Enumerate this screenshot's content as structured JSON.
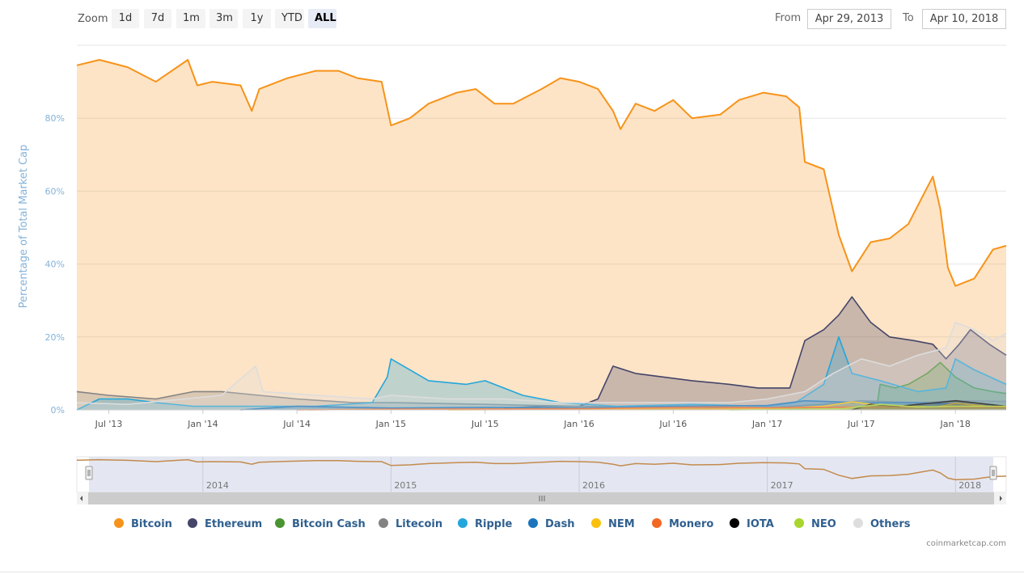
{
  "zoom": {
    "label": "Zoom",
    "buttons": [
      "1d",
      "7d",
      "1m",
      "3m",
      "1y",
      "YTD",
      "ALL"
    ],
    "active": "ALL"
  },
  "range": {
    "from_label": "From",
    "from_value": "Apr 29, 2013",
    "to_label": "To",
    "to_value": "Apr 10, 2018"
  },
  "credit": "coinmarketcap.com",
  "chart_data": {
    "type": "area",
    "title": "",
    "ylabel": "Percentage of Total Market Cap",
    "xlabel": "",
    "x_range": [
      2013.33,
      2018.27
    ],
    "ylim": [
      0,
      100
    ],
    "y_ticks": [
      0,
      20,
      40,
      60,
      80
    ],
    "y_tick_labels": [
      "0%",
      "20%",
      "40%",
      "60%",
      "80%"
    ],
    "x_ticks": [
      2013.5,
      2014.0,
      2014.5,
      2015.0,
      2015.5,
      2016.0,
      2016.5,
      2017.0,
      2017.5,
      2018.0
    ],
    "x_tick_labels": [
      "Jul '13",
      "Jan '14",
      "Jul '14",
      "Jan '15",
      "Jul '15",
      "Jan '16",
      "Jul '16",
      "Jan '17",
      "Jul '17",
      "Jan '18"
    ],
    "grid": true,
    "legend_position": "bottom",
    "navigator": {
      "x_ticks": [
        2014,
        2015,
        2016,
        2017,
        2018
      ],
      "x_tick_labels": [
        "2014",
        "2015",
        "2016",
        "2017",
        "2018"
      ]
    },
    "series": [
      {
        "name": "Bitcoin",
        "color": "#f7931a",
        "points": [
          [
            2013.33,
            94.5
          ],
          [
            2013.45,
            96
          ],
          [
            2013.6,
            94
          ],
          [
            2013.75,
            90
          ],
          [
            2013.92,
            96
          ],
          [
            2013.97,
            89
          ],
          [
            2014.05,
            90
          ],
          [
            2014.2,
            89
          ],
          [
            2014.26,
            82
          ],
          [
            2014.3,
            88
          ],
          [
            2014.45,
            91
          ],
          [
            2014.6,
            93
          ],
          [
            2014.72,
            93
          ],
          [
            2014.82,
            91
          ],
          [
            2014.95,
            90
          ],
          [
            2015.0,
            78
          ],
          [
            2015.1,
            80
          ],
          [
            2015.2,
            84
          ],
          [
            2015.35,
            87
          ],
          [
            2015.45,
            88
          ],
          [
            2015.55,
            84
          ],
          [
            2015.65,
            84
          ],
          [
            2015.8,
            88
          ],
          [
            2015.9,
            91
          ],
          [
            2016.0,
            90
          ],
          [
            2016.1,
            88
          ],
          [
            2016.18,
            82
          ],
          [
            2016.22,
            77
          ],
          [
            2016.3,
            84
          ],
          [
            2016.4,
            82
          ],
          [
            2016.5,
            85
          ],
          [
            2016.6,
            80
          ],
          [
            2016.75,
            81
          ],
          [
            2016.85,
            85
          ],
          [
            2016.98,
            87
          ],
          [
            2017.1,
            86
          ],
          [
            2017.17,
            83
          ],
          [
            2017.2,
            68
          ],
          [
            2017.3,
            66
          ],
          [
            2017.38,
            48
          ],
          [
            2017.45,
            38
          ],
          [
            2017.55,
            46
          ],
          [
            2017.65,
            47
          ],
          [
            2017.75,
            51
          ],
          [
            2017.82,
            58
          ],
          [
            2017.88,
            64
          ],
          [
            2017.92,
            55
          ],
          [
            2017.96,
            39
          ],
          [
            2018.0,
            34
          ],
          [
            2018.1,
            36
          ],
          [
            2018.2,
            44
          ],
          [
            2018.27,
            45
          ]
        ]
      },
      {
        "name": "Ethereum",
        "color": "#454569",
        "points": [
          [
            2015.6,
            0.5
          ],
          [
            2015.8,
            1
          ],
          [
            2016.0,
            1
          ],
          [
            2016.1,
            3
          ],
          [
            2016.18,
            12
          ],
          [
            2016.3,
            10
          ],
          [
            2016.45,
            9
          ],
          [
            2016.6,
            8
          ],
          [
            2016.8,
            7
          ],
          [
            2016.95,
            6
          ],
          [
            2017.05,
            6
          ],
          [
            2017.12,
            6
          ],
          [
            2017.2,
            19
          ],
          [
            2017.3,
            22
          ],
          [
            2017.38,
            26
          ],
          [
            2017.45,
            31
          ],
          [
            2017.55,
            24
          ],
          [
            2017.65,
            20
          ],
          [
            2017.78,
            19
          ],
          [
            2017.88,
            18
          ],
          [
            2017.95,
            14
          ],
          [
            2018.02,
            18
          ],
          [
            2018.08,
            22
          ],
          [
            2018.18,
            18
          ],
          [
            2018.27,
            15
          ]
        ]
      },
      {
        "name": "Bitcoin Cash",
        "color": "#4a9431",
        "points": [
          [
            2017.58,
            0
          ],
          [
            2017.6,
            7
          ],
          [
            2017.68,
            6
          ],
          [
            2017.75,
            7
          ],
          [
            2017.85,
            10
          ],
          [
            2017.92,
            13
          ],
          [
            2018.0,
            9
          ],
          [
            2018.1,
            6
          ],
          [
            2018.2,
            5
          ],
          [
            2018.27,
            4.5
          ]
        ]
      },
      {
        "name": "Litecoin",
        "color": "#838383",
        "points": [
          [
            2013.33,
            5
          ],
          [
            2013.5,
            4
          ],
          [
            2013.75,
            3
          ],
          [
            2013.95,
            5
          ],
          [
            2014.1,
            5
          ],
          [
            2014.3,
            4
          ],
          [
            2014.5,
            3
          ],
          [
            2014.8,
            2
          ],
          [
            2015.0,
            2
          ],
          [
            2015.5,
            1.5
          ],
          [
            2016.0,
            1
          ],
          [
            2016.5,
            0.6
          ],
          [
            2017.0,
            0.6
          ],
          [
            2017.3,
            1.5
          ],
          [
            2017.5,
            2.5
          ],
          [
            2017.8,
            2
          ],
          [
            2018.0,
            2.5
          ],
          [
            2018.27,
            2.3
          ]
        ]
      },
      {
        "name": "Ripple",
        "color": "#23a6db",
        "points": [
          [
            2013.33,
            0
          ],
          [
            2013.45,
            3
          ],
          [
            2013.6,
            3
          ],
          [
            2013.75,
            2
          ],
          [
            2013.95,
            1
          ],
          [
            2014.2,
            1
          ],
          [
            2014.6,
            1
          ],
          [
            2014.9,
            2
          ],
          [
            2014.98,
            9
          ],
          [
            2015.0,
            14
          ],
          [
            2015.1,
            11
          ],
          [
            2015.2,
            8
          ],
          [
            2015.4,
            7
          ],
          [
            2015.5,
            8
          ],
          [
            2015.7,
            4
          ],
          [
            2015.9,
            2
          ],
          [
            2016.2,
            1
          ],
          [
            2016.6,
            1.5
          ],
          [
            2017.0,
            1
          ],
          [
            2017.15,
            2
          ],
          [
            2017.3,
            7
          ],
          [
            2017.38,
            20
          ],
          [
            2017.45,
            10
          ],
          [
            2017.6,
            8
          ],
          [
            2017.8,
            5
          ],
          [
            2017.95,
            6
          ],
          [
            2018.0,
            14
          ],
          [
            2018.1,
            11
          ],
          [
            2018.27,
            7
          ]
        ]
      },
      {
        "name": "Dash",
        "color": "#1c75bc",
        "points": [
          [
            2014.2,
            0
          ],
          [
            2014.5,
            1
          ],
          [
            2015.0,
            0.5
          ],
          [
            2015.5,
            0.7
          ],
          [
            2016.0,
            0.5
          ],
          [
            2016.5,
            1
          ],
          [
            2017.0,
            1.2
          ],
          [
            2017.2,
            2.5
          ],
          [
            2017.5,
            2
          ],
          [
            2017.8,
            2
          ],
          [
            2018.0,
            1.5
          ],
          [
            2018.27,
            1
          ]
        ]
      },
      {
        "name": "NEM",
        "color": "#fbc00e",
        "points": [
          [
            2015.3,
            0
          ],
          [
            2016.5,
            0.2
          ],
          [
            2017.0,
            0.3
          ],
          [
            2017.3,
            1
          ],
          [
            2017.45,
            2.2
          ],
          [
            2017.6,
            1.3
          ],
          [
            2017.9,
            0.8
          ],
          [
            2018.0,
            1.8
          ],
          [
            2018.27,
            0.6
          ]
        ]
      },
      {
        "name": "Monero",
        "color": "#f26822",
        "points": [
          [
            2014.5,
            0
          ],
          [
            2015.0,
            0.2
          ],
          [
            2016.0,
            0.3
          ],
          [
            2016.7,
            0.8
          ],
          [
            2017.0,
            0.6
          ],
          [
            2017.5,
            0.8
          ],
          [
            2018.0,
            0.8
          ],
          [
            2018.27,
            0.7
          ]
        ]
      },
      {
        "name": "IOTA",
        "color": "#000000",
        "points": [
          [
            2017.45,
            0
          ],
          [
            2017.55,
            1.5
          ],
          [
            2017.7,
            1
          ],
          [
            2017.9,
            2
          ],
          [
            2018.0,
            2.5
          ],
          [
            2018.27,
            1
          ]
        ]
      },
      {
        "name": "NEO",
        "color": "#a9d62e",
        "points": [
          [
            2016.8,
            0
          ],
          [
            2017.4,
            0.3
          ],
          [
            2017.6,
            1.5
          ],
          [
            2017.8,
            0.8
          ],
          [
            2018.0,
            1
          ],
          [
            2018.27,
            1
          ]
        ]
      },
      {
        "name": "Others",
        "color": "#dddddd",
        "points": [
          [
            2013.33,
            2
          ],
          [
            2013.6,
            1.5
          ],
          [
            2013.9,
            3
          ],
          [
            2014.1,
            4
          ],
          [
            2014.28,
            12
          ],
          [
            2014.32,
            5
          ],
          [
            2014.6,
            4
          ],
          [
            2014.9,
            3
          ],
          [
            2015.0,
            4
          ],
          [
            2015.3,
            3
          ],
          [
            2015.6,
            3
          ],
          [
            2015.9,
            2
          ],
          [
            2016.2,
            2
          ],
          [
            2016.5,
            2
          ],
          [
            2016.8,
            2
          ],
          [
            2017.0,
            3
          ],
          [
            2017.2,
            5
          ],
          [
            2017.35,
            10
          ],
          [
            2017.5,
            14
          ],
          [
            2017.65,
            12
          ],
          [
            2017.8,
            15
          ],
          [
            2017.95,
            17
          ],
          [
            2018.0,
            24
          ],
          [
            2018.1,
            22
          ],
          [
            2018.2,
            19
          ],
          [
            2018.27,
            21
          ]
        ]
      }
    ]
  }
}
